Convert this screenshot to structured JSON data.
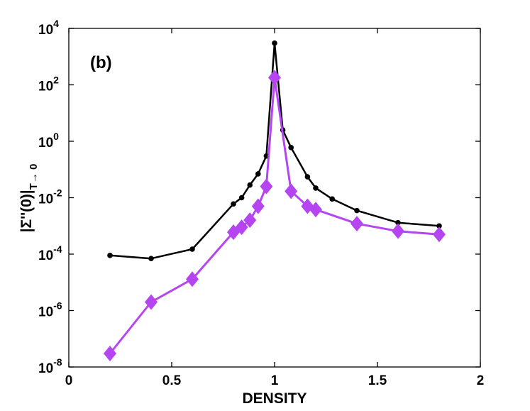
{
  "chart_data": {
    "type": "line",
    "panel_label": "(b)",
    "xlabel": "DENSITY",
    "ylabel_parts": {
      "main": "|Σ''(0)|",
      "subscript": "T→ 0"
    },
    "xlim": [
      0,
      2
    ],
    "ylim_log10": [
      -8,
      4
    ],
    "y_scale": "log",
    "x_ticks": [
      {
        "value": 0,
        "label": "0"
      },
      {
        "value": 0.5,
        "label": "0.5"
      },
      {
        "value": 1,
        "label": "1"
      },
      {
        "value": 1.5,
        "label": "1.5"
      },
      {
        "value": 2,
        "label": "2"
      }
    ],
    "y_ticks": [
      {
        "exp": -8,
        "base": "10",
        "power": "-8"
      },
      {
        "exp": -6,
        "base": "10",
        "power": "-6"
      },
      {
        "exp": -4,
        "base": "10",
        "power": "-4"
      },
      {
        "exp": -2,
        "base": "10",
        "power": "-2"
      },
      {
        "exp": 0,
        "base": "10",
        "power": "0"
      },
      {
        "exp": 2,
        "base": "10",
        "power": "2"
      },
      {
        "exp": 4,
        "base": "10",
        "power": "4"
      }
    ],
    "series": [
      {
        "name": "black-dots",
        "color": "#000000",
        "marker": "circle",
        "x": [
          0.2,
          0.4,
          0.6,
          0.8,
          0.84,
          0.88,
          0.92,
          0.96,
          1.0,
          1.04,
          1.08,
          1.16,
          1.2,
          1.28,
          1.4,
          1.6,
          1.8
        ],
        "y": [
          9e-05,
          7e-05,
          0.00015,
          0.006,
          0.01,
          0.028,
          0.07,
          0.3,
          3000,
          2.5,
          0.6,
          0.055,
          0.022,
          0.009,
          0.0035,
          0.0013,
          0.001
        ]
      },
      {
        "name": "purple-diamonds",
        "color": "#b545f0",
        "marker": "diamond",
        "x": [
          0.2,
          0.4,
          0.6,
          0.8,
          0.84,
          0.88,
          0.92,
          0.96,
          1.0,
          1.08,
          1.16,
          1.2,
          1.4,
          1.6,
          1.8
        ],
        "y": [
          3e-08,
          2e-06,
          1.3e-05,
          0.0006,
          0.0009,
          0.0016,
          0.005,
          0.025,
          180,
          0.017,
          0.005,
          0.0038,
          0.0012,
          0.00065,
          0.0005
        ]
      }
    ]
  }
}
